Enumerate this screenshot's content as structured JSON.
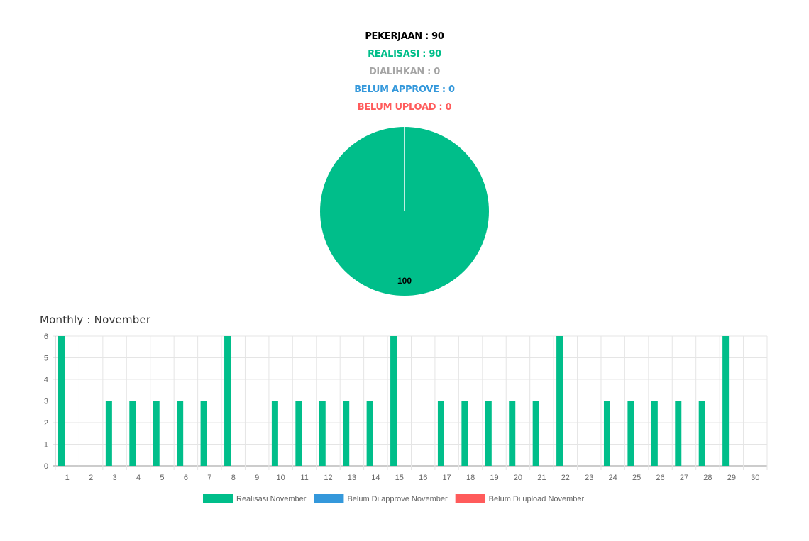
{
  "stats": {
    "pekerjaan": "PEKERJAAN : 90",
    "realisasi": "REALISASI : 90",
    "dialihkan": "DIALIHKAN : 0",
    "belum_approve": "BELUM APPROVE : 0",
    "belum_upload": "BELUM UPLOAD : 0"
  },
  "colors": {
    "pekerjaan": "#000000",
    "realisasi": "#00be8a",
    "dialihkan": "#a5a5a5",
    "belum_approve": "#3498db",
    "belum_upload": "#ff5b5b",
    "grid": "#e5e5e5",
    "axis": "#666666"
  },
  "monthly_title": "Monthly : November",
  "chart_data": [
    {
      "type": "pie",
      "slices": [
        {
          "label": "Realisasi",
          "value": 100,
          "color": "#00be8a"
        }
      ],
      "data_labels": [
        "100"
      ]
    },
    {
      "type": "bar",
      "categories": [
        "1",
        "2",
        "3",
        "4",
        "5",
        "6",
        "7",
        "8",
        "9",
        "10",
        "11",
        "12",
        "13",
        "14",
        "15",
        "16",
        "17",
        "18",
        "19",
        "20",
        "21",
        "22",
        "23",
        "24",
        "25",
        "26",
        "27",
        "28",
        "29",
        "30"
      ],
      "series": [
        {
          "name": "Realisasi November",
          "color": "#00be8a",
          "values": [
            6,
            0,
            3,
            3,
            3,
            3,
            3,
            6,
            0,
            3,
            3,
            3,
            3,
            3,
            6,
            0,
            3,
            3,
            3,
            3,
            3,
            6,
            0,
            3,
            3,
            3,
            3,
            3,
            6,
            0
          ]
        },
        {
          "name": "Belum Di approve November",
          "color": "#3498db",
          "values": [
            0,
            0,
            0,
            0,
            0,
            0,
            0,
            0,
            0,
            0,
            0,
            0,
            0,
            0,
            0,
            0,
            0,
            0,
            0,
            0,
            0,
            0,
            0,
            0,
            0,
            0,
            0,
            0,
            0,
            0
          ]
        },
        {
          "name": "Belum Di upload November",
          "color": "#ff5b5b",
          "values": [
            0,
            0,
            0,
            0,
            0,
            0,
            0,
            0,
            0,
            0,
            0,
            0,
            0,
            0,
            0,
            0,
            0,
            0,
            0,
            0,
            0,
            0,
            0,
            0,
            0,
            0,
            0,
            0,
            0,
            0
          ]
        }
      ],
      "yticks": [
        "0",
        "1",
        "2",
        "3",
        "4",
        "5",
        "6"
      ],
      "ylim": [
        0,
        6
      ],
      "grid": true,
      "legend_position": "bottom"
    }
  ]
}
